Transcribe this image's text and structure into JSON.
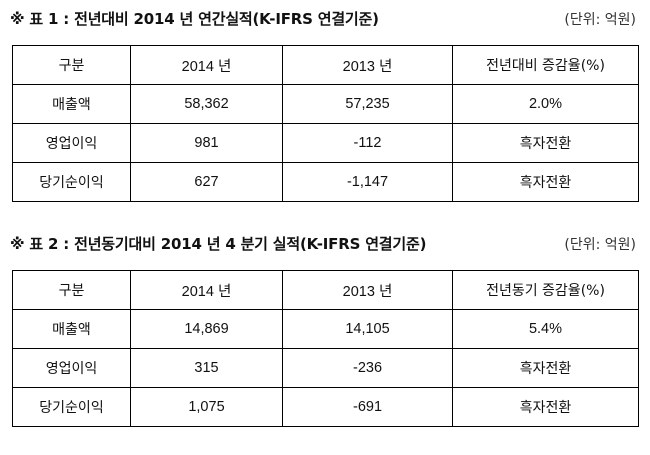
{
  "table1": {
    "title": "※ 표 1 : 전년대비 2014 년 연간실적(K-IFRS 연결기준)",
    "unit": "(단위: 억원)",
    "headers": [
      "구분",
      "2014 년",
      "2013 년",
      "전년대비 증감율(%)"
    ],
    "rows": [
      [
        "매출액",
        "58,362",
        "57,235",
        "2.0%"
      ],
      [
        "영업이익",
        "981",
        "-112",
        "흑자전환"
      ],
      [
        "당기순이익",
        "627",
        "-1,147",
        "흑자전환"
      ]
    ]
  },
  "table2": {
    "title": "※ 표 2 : 전년동기대비 2014 년 4 분기 실적(K-IFRS 연결기준)",
    "unit": "(단위: 억원)",
    "headers": [
      "구분",
      "2014 년",
      "2013 년",
      "전년동기 증감율(%)"
    ],
    "rows": [
      [
        "매출액",
        "14,869",
        "14,105",
        "5.4%"
      ],
      [
        "영업이익",
        "315",
        "-236",
        "흑자전환"
      ],
      [
        "당기순이익",
        "1,075",
        "-691",
        "흑자전환"
      ]
    ]
  }
}
